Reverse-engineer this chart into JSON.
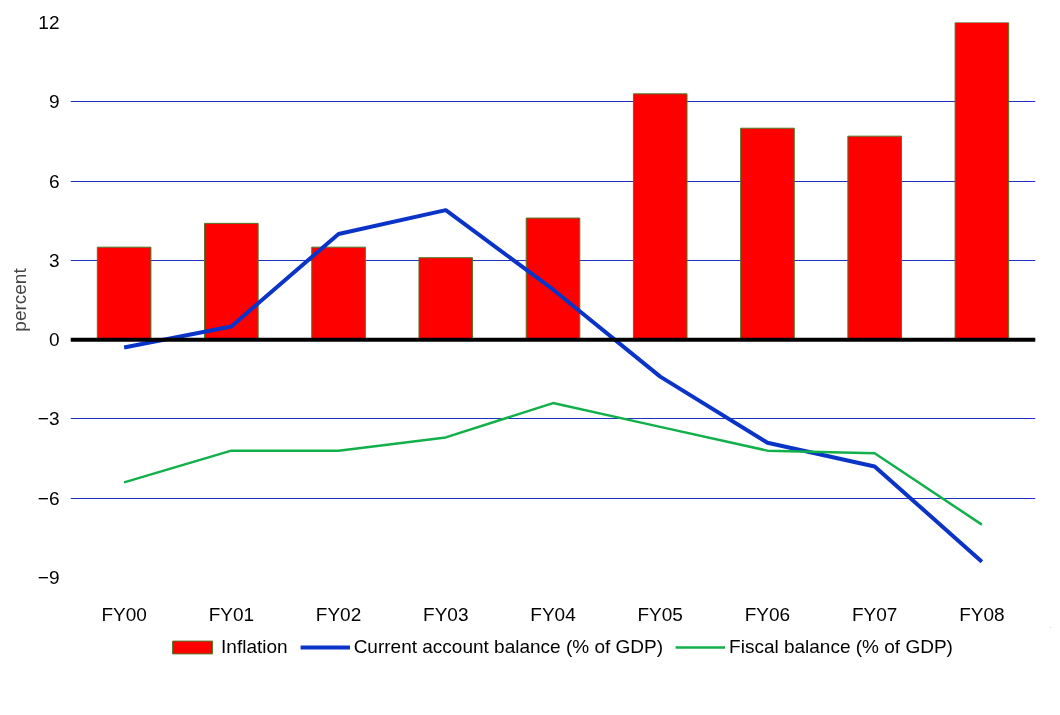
{
  "chart_data": {
    "type": "bar",
    "ylabel": "percent",
    "categories": [
      "FY00",
      "FY01",
      "FY02",
      "FY03",
      "FY04",
      "FY05",
      "FY06",
      "FY07",
      "FY08"
    ],
    "series": [
      {
        "name": "Inflation",
        "color": "#ff0000",
        "values": [
          3.5,
          4.4,
          3.5,
          3.1,
          4.6,
          9.3,
          8.0,
          7.7,
          12.0
        ]
      },
      {
        "name": "Current account balance (% of GDP)",
        "type": "line",
        "color": "#0a33c8",
        "values": [
          -0.3,
          0.5,
          4.0,
          4.9,
          1.9,
          -1.4,
          -3.9,
          -4.8,
          -8.4
        ]
      },
      {
        "name": "Fiscal balance (% of GDP)",
        "type": "line",
        "color": "#12b04a",
        "values": [
          -5.4,
          -4.2,
          -4.2,
          -3.7,
          -2.4,
          -3.3,
          -4.2,
          -4.3,
          -7.0
        ]
      }
    ],
    "ylim": [
      -9,
      12
    ],
    "yticks": [
      -9,
      -6,
      -3,
      0,
      3,
      6,
      9,
      12
    ],
    "grid": "y",
    "legend": "bottom",
    "ref_lines": [
      {
        "axis": "y",
        "value": 0,
        "label": null,
        "color": "#000000"
      }
    ]
  }
}
